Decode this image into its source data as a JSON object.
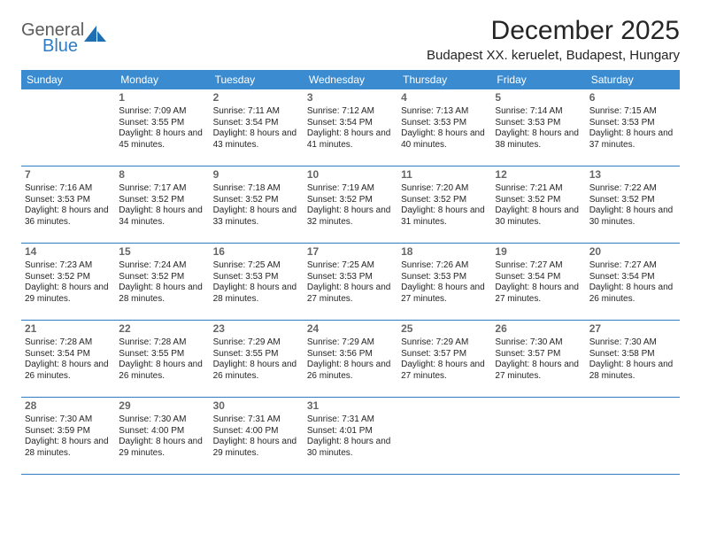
{
  "logo": {
    "general": "General",
    "blue": "Blue"
  },
  "title": "December 2025",
  "location": "Budapest XX. keruelet, Budapest, Hungary",
  "headers": [
    "Sunday",
    "Monday",
    "Tuesday",
    "Wednesday",
    "Thursday",
    "Friday",
    "Saturday"
  ],
  "colors": {
    "header_bg": "#3b8bd0",
    "header_fg": "#ffffff",
    "rule": "#2f7cc4",
    "text": "#252525",
    "muted": "#666666",
    "logo_gray": "#5c5c5c",
    "logo_blue": "#2f7cc4",
    "background": "#ffffff"
  },
  "first_weekday_index": 1,
  "days": [
    {
      "n": 1,
      "sr": "7:09 AM",
      "ss": "3:55 PM",
      "dl": "8 hours and 45 minutes."
    },
    {
      "n": 2,
      "sr": "7:11 AM",
      "ss": "3:54 PM",
      "dl": "8 hours and 43 minutes."
    },
    {
      "n": 3,
      "sr": "7:12 AM",
      "ss": "3:54 PM",
      "dl": "8 hours and 41 minutes."
    },
    {
      "n": 4,
      "sr": "7:13 AM",
      "ss": "3:53 PM",
      "dl": "8 hours and 40 minutes."
    },
    {
      "n": 5,
      "sr": "7:14 AM",
      "ss": "3:53 PM",
      "dl": "8 hours and 38 minutes."
    },
    {
      "n": 6,
      "sr": "7:15 AM",
      "ss": "3:53 PM",
      "dl": "8 hours and 37 minutes."
    },
    {
      "n": 7,
      "sr": "7:16 AM",
      "ss": "3:53 PM",
      "dl": "8 hours and 36 minutes."
    },
    {
      "n": 8,
      "sr": "7:17 AM",
      "ss": "3:52 PM",
      "dl": "8 hours and 34 minutes."
    },
    {
      "n": 9,
      "sr": "7:18 AM",
      "ss": "3:52 PM",
      "dl": "8 hours and 33 minutes."
    },
    {
      "n": 10,
      "sr": "7:19 AM",
      "ss": "3:52 PM",
      "dl": "8 hours and 32 minutes."
    },
    {
      "n": 11,
      "sr": "7:20 AM",
      "ss": "3:52 PM",
      "dl": "8 hours and 31 minutes."
    },
    {
      "n": 12,
      "sr": "7:21 AM",
      "ss": "3:52 PM",
      "dl": "8 hours and 30 minutes."
    },
    {
      "n": 13,
      "sr": "7:22 AM",
      "ss": "3:52 PM",
      "dl": "8 hours and 30 minutes."
    },
    {
      "n": 14,
      "sr": "7:23 AM",
      "ss": "3:52 PM",
      "dl": "8 hours and 29 minutes."
    },
    {
      "n": 15,
      "sr": "7:24 AM",
      "ss": "3:52 PM",
      "dl": "8 hours and 28 minutes."
    },
    {
      "n": 16,
      "sr": "7:25 AM",
      "ss": "3:53 PM",
      "dl": "8 hours and 28 minutes."
    },
    {
      "n": 17,
      "sr": "7:25 AM",
      "ss": "3:53 PM",
      "dl": "8 hours and 27 minutes."
    },
    {
      "n": 18,
      "sr": "7:26 AM",
      "ss": "3:53 PM",
      "dl": "8 hours and 27 minutes."
    },
    {
      "n": 19,
      "sr": "7:27 AM",
      "ss": "3:54 PM",
      "dl": "8 hours and 27 minutes."
    },
    {
      "n": 20,
      "sr": "7:27 AM",
      "ss": "3:54 PM",
      "dl": "8 hours and 26 minutes."
    },
    {
      "n": 21,
      "sr": "7:28 AM",
      "ss": "3:54 PM",
      "dl": "8 hours and 26 minutes."
    },
    {
      "n": 22,
      "sr": "7:28 AM",
      "ss": "3:55 PM",
      "dl": "8 hours and 26 minutes."
    },
    {
      "n": 23,
      "sr": "7:29 AM",
      "ss": "3:55 PM",
      "dl": "8 hours and 26 minutes."
    },
    {
      "n": 24,
      "sr": "7:29 AM",
      "ss": "3:56 PM",
      "dl": "8 hours and 26 minutes."
    },
    {
      "n": 25,
      "sr": "7:29 AM",
      "ss": "3:57 PM",
      "dl": "8 hours and 27 minutes."
    },
    {
      "n": 26,
      "sr": "7:30 AM",
      "ss": "3:57 PM",
      "dl": "8 hours and 27 minutes."
    },
    {
      "n": 27,
      "sr": "7:30 AM",
      "ss": "3:58 PM",
      "dl": "8 hours and 28 minutes."
    },
    {
      "n": 28,
      "sr": "7:30 AM",
      "ss": "3:59 PM",
      "dl": "8 hours and 28 minutes."
    },
    {
      "n": 29,
      "sr": "7:30 AM",
      "ss": "4:00 PM",
      "dl": "8 hours and 29 minutes."
    },
    {
      "n": 30,
      "sr": "7:31 AM",
      "ss": "4:00 PM",
      "dl": "8 hours and 29 minutes."
    },
    {
      "n": 31,
      "sr": "7:31 AM",
      "ss": "4:01 PM",
      "dl": "8 hours and 30 minutes."
    }
  ],
  "labels": {
    "sunrise": "Sunrise:",
    "sunset": "Sunset:",
    "daylight": "Daylight:"
  }
}
